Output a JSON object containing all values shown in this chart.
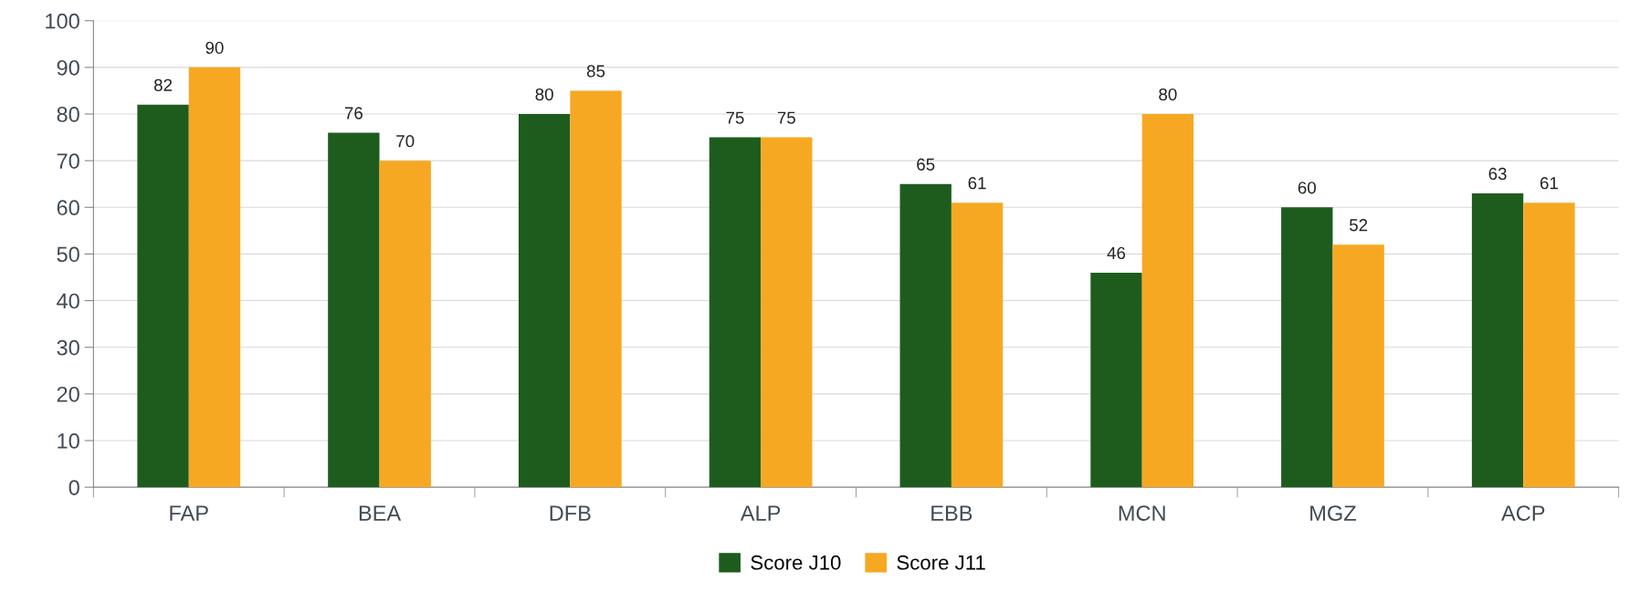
{
  "chart_data": {
    "type": "bar",
    "categories": [
      "FAP",
      "BEA",
      "DFB",
      "ALP",
      "EBB",
      "MCN",
      "MGZ",
      "ACP"
    ],
    "series": [
      {
        "name": "Score J10",
        "color": "#1e5c1e",
        "values": [
          82,
          76,
          80,
          75,
          65,
          46,
          60,
          63
        ]
      },
      {
        "name": "Score J11",
        "color": "#f7a823",
        "values": [
          90,
          70,
          85,
          75,
          61,
          80,
          52,
          61
        ]
      }
    ],
    "ylim": [
      0,
      100
    ],
    "yticks": [
      0,
      10,
      20,
      30,
      40,
      50,
      60,
      70,
      80,
      90,
      100
    ],
    "grid": "y",
    "legend": "bottom",
    "data_labels": true
  }
}
